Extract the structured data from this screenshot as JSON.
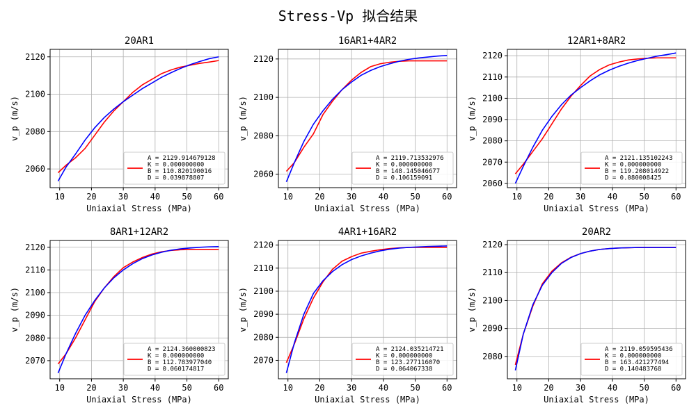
{
  "figure": {
    "title": "Stress-Vp 拟合结果"
  },
  "colors": {
    "measured": "#ff0000",
    "fit": "#0000ff",
    "grid": "#b0b0b0"
  },
  "chart_data": [
    {
      "type": "line",
      "title": "20AR1",
      "xlabel": "Uniaxial Stress (MPa)",
      "ylabel": "v_p (m/s)",
      "xlim": [
        7,
        63
      ],
      "ylim": [
        2050,
        2124
      ],
      "xticks": [
        10,
        20,
        30,
        40,
        50,
        60
      ],
      "yticks": [
        2060,
        2080,
        2100,
        2120
      ],
      "grid": true,
      "legend_position": "lower-right",
      "legend_lines": [
        "A = 2129.914679128",
        "K = 0.000000000",
        "B = 110.820190016",
        "D = 0.039878807"
      ],
      "series": [
        {
          "role": "measured",
          "x": [
            9.5,
            12,
            15,
            18,
            21,
            24,
            27,
            30,
            33,
            36,
            39,
            42,
            45,
            48,
            51,
            54,
            57,
            60
          ],
          "y": [
            2058,
            2062,
            2066,
            2071,
            2078,
            2085,
            2091,
            2096,
            2101,
            2105,
            2108,
            2111,
            2113,
            2114.5,
            2115.5,
            2116.5,
            2117.2,
            2118
          ]
        },
        {
          "role": "fit",
          "x": [
            9.5,
            12,
            15,
            18,
            21,
            24,
            27,
            30,
            33,
            36,
            39,
            42,
            45,
            48,
            51,
            54,
            57,
            60
          ],
          "y": [
            2053.5,
            2061,
            2068,
            2075.5,
            2082,
            2087.5,
            2092,
            2096,
            2099.5,
            2103,
            2106,
            2109,
            2111.5,
            2113.8,
            2115.8,
            2117.5,
            2119,
            2120
          ]
        }
      ]
    },
    {
      "type": "line",
      "title": "16AR1+4AR2",
      "xlabel": "Uniaxial Stress (MPa)",
      "ylabel": "v_p (m/s)",
      "xlim": [
        7,
        63
      ],
      "ylim": [
        2053,
        2125
      ],
      "xticks": [
        10,
        20,
        30,
        40,
        50,
        60
      ],
      "yticks": [
        2060,
        2080,
        2100,
        2120
      ],
      "grid": true,
      "legend_position": "lower-right",
      "legend_lines": [
        "A = 2119.713532976",
        "K = 0.000000000",
        "B = 148.145046677",
        "D = 0.106159091"
      ],
      "series": [
        {
          "role": "measured",
          "x": [
            9.5,
            12,
            15,
            18,
            21,
            24,
            27,
            30,
            33,
            36,
            39,
            42,
            45,
            48,
            51,
            54,
            57,
            60
          ],
          "y": [
            2061.5,
            2066,
            2074,
            2081,
            2091,
            2098,
            2104,
            2109,
            2113,
            2116,
            2117.5,
            2118.3,
            2118.8,
            2119,
            2119,
            2119,
            2119,
            2119
          ]
        },
        {
          "role": "fit",
          "x": [
            9.5,
            12,
            15,
            18,
            21,
            24,
            27,
            30,
            33,
            36,
            39,
            42,
            45,
            48,
            51,
            54,
            57,
            60
          ],
          "y": [
            2056,
            2066,
            2077,
            2086,
            2093,
            2099,
            2104,
            2108,
            2111.5,
            2114,
            2116,
            2117.5,
            2118.8,
            2119.8,
            2120.5,
            2121,
            2121.5,
            2121.8
          ]
        }
      ]
    },
    {
      "type": "line",
      "title": "12AR1+8AR2",
      "xlabel": "Uniaxial Stress (MPa)",
      "ylabel": "v_p (m/s)",
      "xlim": [
        7,
        63
      ],
      "ylim": [
        2058,
        2123
      ],
      "xticks": [
        10,
        20,
        30,
        40,
        50,
        60
      ],
      "yticks": [
        2060,
        2070,
        2080,
        2090,
        2100,
        2110,
        2120
      ],
      "grid": true,
      "legend_position": "lower-right",
      "legend_lines": [
        "A = 2121.135102243",
        "K = 0.000000000",
        "B = 119.208014922",
        "D = 0.080008425"
      ],
      "series": [
        {
          "role": "measured",
          "x": [
            9.5,
            12,
            15,
            18,
            21,
            24,
            27,
            30,
            33,
            36,
            39,
            42,
            45,
            48,
            51,
            54,
            57,
            60
          ],
          "y": [
            2064.5,
            2069,
            2075,
            2081,
            2088,
            2095,
            2101,
            2106,
            2110.5,
            2113.5,
            2115.7,
            2117,
            2118,
            2118.5,
            2118.8,
            2119,
            2119,
            2119
          ]
        },
        {
          "role": "fit",
          "x": [
            9.5,
            12,
            15,
            18,
            21,
            24,
            27,
            30,
            33,
            36,
            39,
            42,
            45,
            48,
            51,
            54,
            57,
            60
          ],
          "y": [
            2060,
            2068,
            2077,
            2085,
            2091.5,
            2097,
            2101.5,
            2105,
            2108.2,
            2111,
            2113.2,
            2115,
            2116.5,
            2117.8,
            2118.8,
            2119.8,
            2120.5,
            2121.3
          ]
        }
      ]
    },
    {
      "type": "line",
      "title": "8AR1+12AR2",
      "xlabel": "Uniaxial Stress (MPa)",
      "ylabel": "v_p (m/s)",
      "xlim": [
        7,
        63
      ],
      "ylim": [
        2062,
        2123
      ],
      "xticks": [
        10,
        20,
        30,
        40,
        50,
        60
      ],
      "yticks": [
        2070,
        2080,
        2090,
        2100,
        2110,
        2120
      ],
      "grid": true,
      "legend_position": "lower-right",
      "legend_lines": [
        "A = 2124.360000823",
        "K = 0.000000000",
        "B = 112.783977040",
        "D = 0.060174817"
      ],
      "series": [
        {
          "role": "measured",
          "x": [
            9.5,
            12,
            15,
            18,
            21,
            24,
            27,
            30,
            33,
            36,
            39,
            42,
            45,
            48,
            51,
            54,
            57,
            60
          ],
          "y": [
            2068.5,
            2073,
            2080,
            2088,
            2096,
            2102,
            2107,
            2111,
            2113.5,
            2115.5,
            2117,
            2118,
            2118.6,
            2118.9,
            2119,
            2119,
            2119,
            2119
          ]
        },
        {
          "role": "fit",
          "x": [
            9.5,
            12,
            15,
            18,
            21,
            24,
            27,
            30,
            33,
            36,
            39,
            42,
            45,
            48,
            51,
            54,
            57,
            60
          ],
          "y": [
            2064.5,
            2073,
            2082,
            2090,
            2096.5,
            2102,
            2106.5,
            2110,
            2112.8,
            2115,
            2116.6,
            2117.8,
            2118.7,
            2119.3,
            2119.7,
            2120,
            2120.2,
            2120.3
          ]
        }
      ]
    },
    {
      "type": "line",
      "title": "4AR1+16AR2",
      "xlabel": "Uniaxial Stress (MPa)",
      "ylabel": "v_p (m/s)",
      "xlim": [
        7,
        63
      ],
      "ylim": [
        2062,
        2122
      ],
      "xticks": [
        10,
        20,
        30,
        40,
        50,
        60
      ],
      "yticks": [
        2070,
        2080,
        2090,
        2100,
        2110,
        2120
      ],
      "grid": true,
      "legend_position": "lower-right",
      "legend_lines": [
        "A = 2124.035214721",
        "K = 0.000000000",
        "B = 123.277116070",
        "D = 0.064067338"
      ],
      "series": [
        {
          "role": "measured",
          "x": [
            9.5,
            12,
            15,
            18,
            21,
            24,
            27,
            30,
            33,
            36,
            39,
            42,
            45,
            48,
            51,
            54,
            57,
            60
          ],
          "y": [
            2069,
            2077,
            2088,
            2097,
            2104,
            2109.5,
            2113,
            2115,
            2116.5,
            2117.3,
            2118,
            2118.5,
            2118.8,
            2119,
            2119,
            2119,
            2119,
            2119
          ]
        },
        {
          "role": "fit",
          "x": [
            9.5,
            12,
            15,
            18,
            21,
            24,
            27,
            30,
            33,
            36,
            39,
            42,
            45,
            48,
            51,
            54,
            57,
            60
          ],
          "y": [
            2064.5,
            2077.5,
            2090,
            2099,
            2104.5,
            2108.5,
            2111.5,
            2113.7,
            2115.3,
            2116.5,
            2117.5,
            2118.2,
            2118.7,
            2119,
            2119.2,
            2119.4,
            2119.5,
            2119.6
          ]
        }
      ]
    },
    {
      "type": "line",
      "title": "20AR2",
      "xlabel": "Uniaxial Stress (MPa)",
      "ylabel": "v_p (m/s)",
      "xlim": [
        7,
        63
      ],
      "ylim": [
        2072,
        2121.5
      ],
      "xticks": [
        10,
        20,
        30,
        40,
        50,
        60
      ],
      "yticks": [
        2080,
        2090,
        2100,
        2110,
        2120
      ],
      "grid": true,
      "legend_position": "lower-right",
      "legend_lines": [
        "A = 2119.059595436",
        "K = 0.000000000",
        "B = 163.421277494",
        "D = 0.140483768"
      ],
      "series": [
        {
          "role": "measured",
          "x": [
            9.5,
            12,
            15,
            18,
            21,
            24,
            27,
            30,
            33,
            36,
            39,
            42,
            45,
            48,
            51,
            54,
            57,
            60
          ],
          "y": [
            2077,
            2088,
            2098,
            2106,
            2110.5,
            2113.5,
            2115.5,
            2116.8,
            2117.7,
            2118.3,
            2118.6,
            2118.8,
            2118.9,
            2119,
            2119,
            2119,
            2119,
            2119
          ]
        },
        {
          "role": "fit",
          "x": [
            9.5,
            12,
            15,
            18,
            21,
            24,
            27,
            30,
            33,
            36,
            39,
            42,
            45,
            48,
            51,
            54,
            57,
            60
          ],
          "y": [
            2075,
            2088,
            2098.5,
            2105.5,
            2110,
            2113.3,
            2115.4,
            2116.8,
            2117.7,
            2118.3,
            2118.6,
            2118.8,
            2118.9,
            2119,
            2119,
            2119,
            2119,
            2119
          ]
        }
      ]
    }
  ]
}
